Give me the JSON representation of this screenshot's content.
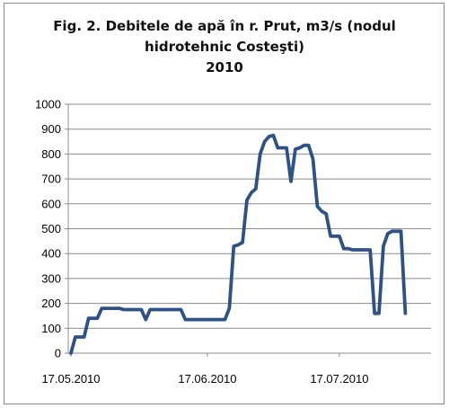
{
  "chart_data": {
    "type": "line",
    "title_lines": [
      "Fig. 2. Debitele de apă în r. Prut, m3/s (nodul",
      "hidrotehnic Costeşti)",
      "2010"
    ],
    "xlabel": "",
    "ylabel": "",
    "ylim": [
      0,
      1000
    ],
    "yticks": [
      0,
      100,
      200,
      300,
      400,
      500,
      600,
      700,
      800,
      900,
      1000
    ],
    "xlim": [
      "2010-05-17",
      "2010-07-31"
    ],
    "xticks": [
      {
        "date": "2010-05-17",
        "label": "17.05.2010"
      },
      {
        "date": "2010-06-17",
        "label": "17.06.2010"
      },
      {
        "date": "2010-07-17",
        "label": "17.07.2010"
      }
    ],
    "grid": true,
    "legend": "none",
    "line_color": "#2e5286",
    "series": [
      {
        "points": [
          [
            "2010-05-17",
            0
          ],
          [
            "2010-05-18",
            65
          ],
          [
            "2010-05-19",
            65
          ],
          [
            "2010-05-20",
            65
          ],
          [
            "2010-05-21",
            140
          ],
          [
            "2010-05-22",
            140
          ],
          [
            "2010-05-23",
            140
          ],
          [
            "2010-05-24",
            180
          ],
          [
            "2010-05-25",
            180
          ],
          [
            "2010-05-28",
            180
          ],
          [
            "2010-05-29",
            175
          ],
          [
            "2010-06-02",
            175
          ],
          [
            "2010-06-03",
            135
          ],
          [
            "2010-06-04",
            175
          ],
          [
            "2010-06-05",
            175
          ],
          [
            "2010-06-11",
            175
          ],
          [
            "2010-06-12",
            135
          ],
          [
            "2010-06-15",
            135
          ],
          [
            "2010-06-21",
            135
          ],
          [
            "2010-06-22",
            180
          ],
          [
            "2010-06-23",
            430
          ],
          [
            "2010-06-24",
            435
          ],
          [
            "2010-06-25",
            445
          ],
          [
            "2010-06-26",
            615
          ],
          [
            "2010-06-27",
            645
          ],
          [
            "2010-06-28",
            660
          ],
          [
            "2010-06-29",
            800
          ],
          [
            "2010-06-30",
            850
          ],
          [
            "2010-07-01",
            870
          ],
          [
            "2010-07-02",
            875
          ],
          [
            "2010-07-03",
            825
          ],
          [
            "2010-07-04",
            825
          ],
          [
            "2010-07-05",
            825
          ],
          [
            "2010-07-06",
            690
          ],
          [
            "2010-07-07",
            820
          ],
          [
            "2010-07-08",
            825
          ],
          [
            "2010-07-09",
            835
          ],
          [
            "2010-07-10",
            835
          ],
          [
            "2010-07-11",
            780
          ],
          [
            "2010-07-12",
            590
          ],
          [
            "2010-07-13",
            570
          ],
          [
            "2010-07-14",
            560
          ],
          [
            "2010-07-15",
            470
          ],
          [
            "2010-07-16",
            470
          ],
          [
            "2010-07-17",
            470
          ],
          [
            "2010-07-18",
            420
          ],
          [
            "2010-07-19",
            420
          ],
          [
            "2010-07-20",
            415
          ],
          [
            "2010-07-24",
            415
          ],
          [
            "2010-07-25",
            160
          ],
          [
            "2010-07-26",
            160
          ],
          [
            "2010-07-27",
            430
          ],
          [
            "2010-07-28",
            480
          ],
          [
            "2010-07-29",
            490
          ],
          [
            "2010-07-30",
            490
          ],
          [
            "2010-07-31",
            490
          ],
          [
            "2010-08-01",
            160
          ]
        ]
      }
    ]
  }
}
